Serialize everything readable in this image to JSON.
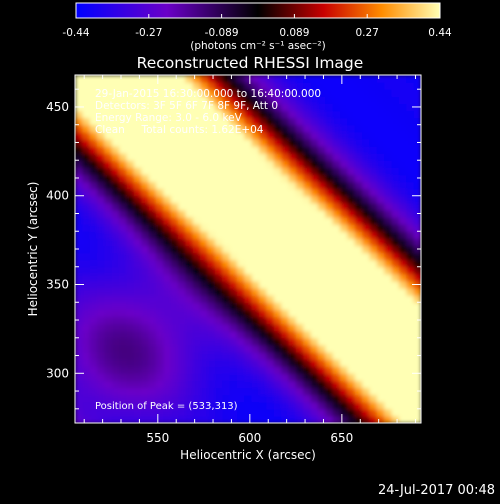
{
  "colorbar": {
    "tick_labels": [
      "-0.44",
      "-0.27",
      "-0.089",
      "0.089",
      "0.27",
      "0.44"
    ],
    "unit_label": "(photons cm⁻² s⁻¹ asec⁻²)"
  },
  "chart_data": {
    "type": "heatmap",
    "title": "Reconstructed RHESSI Image",
    "xlabel": "Heliocentric X (arcsec)",
    "ylabel": "Heliocentric Y (arcsec)",
    "xlim": [
      505,
      693
    ],
    "ylim": [
      272,
      468
    ],
    "x_ticks": [
      550,
      600,
      650
    ],
    "y_ticks": [
      300,
      350,
      400,
      450
    ],
    "color_scale": {
      "min": -0.44,
      "max": 0.44,
      "colors": [
        "#0000ff",
        "#6a00c8",
        "#000000",
        "#c80000",
        "#ff8c00",
        "#ffffb4"
      ]
    },
    "annotations": [
      "29-Jan-2015 16:30:00.000 to 16:40:00.000",
      "Detectors: 3F 5F 6F 7F 8F 9F, Att 0",
      "Energy Range: 3.0 - 6.0 keV",
      "Clean     Total counts: 1.62E+04"
    ],
    "peak_text": "Position of Peak = (533,313)"
  },
  "footer": {
    "timestamp": "24-Jul-2017 00:48"
  }
}
